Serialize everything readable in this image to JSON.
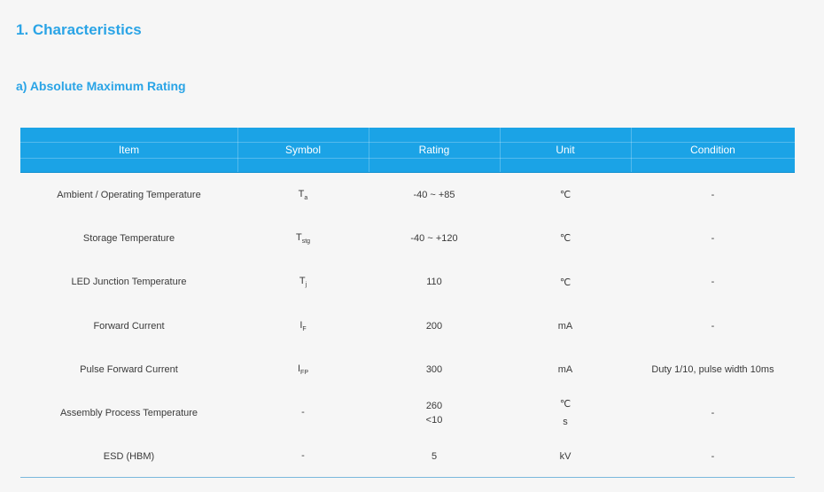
{
  "heading": "1.  Characteristics",
  "subheading": "a)   Absolute Maximum Rating",
  "columns": [
    "Item",
    "Symbol",
    "Rating",
    "Unit",
    "Condition"
  ],
  "rows": [
    {
      "item": "Ambient / Operating Temperature",
      "symbol": "T",
      "symbol_sub": "a",
      "rating": "-40 ~ +85",
      "unit": "℃",
      "condition": "-"
    },
    {
      "item": "Storage Temperature",
      "symbol": "T",
      "symbol_sub": "stg",
      "rating": "-40 ~ +120",
      "unit": "℃",
      "condition": "-"
    },
    {
      "item": "LED Junction Temperature",
      "symbol": "T",
      "symbol_sub": "j",
      "rating": "110",
      "unit": "℃",
      "condition": "-"
    },
    {
      "item": "Forward Current",
      "symbol": "I",
      "symbol_sub": "F",
      "rating": "200",
      "unit": "mA",
      "condition": "-"
    },
    {
      "item": "Pulse Forward Current",
      "symbol": "I",
      "symbol_sub": "FP",
      "rating": "300",
      "unit": "mA",
      "condition": "Duty 1/10, pulse width 10ms"
    },
    {
      "item": "Assembly Process Temperature",
      "symbol": "-",
      "symbol_sub": "",
      "rating": "260",
      "rating2": "<10",
      "unit": "℃",
      "unit2": "s",
      "condition": "-"
    },
    {
      "item": "ESD (HBM)",
      "symbol": "-",
      "symbol_sub": "",
      "rating": "5",
      "unit": "kV",
      "condition": "-"
    }
  ]
}
